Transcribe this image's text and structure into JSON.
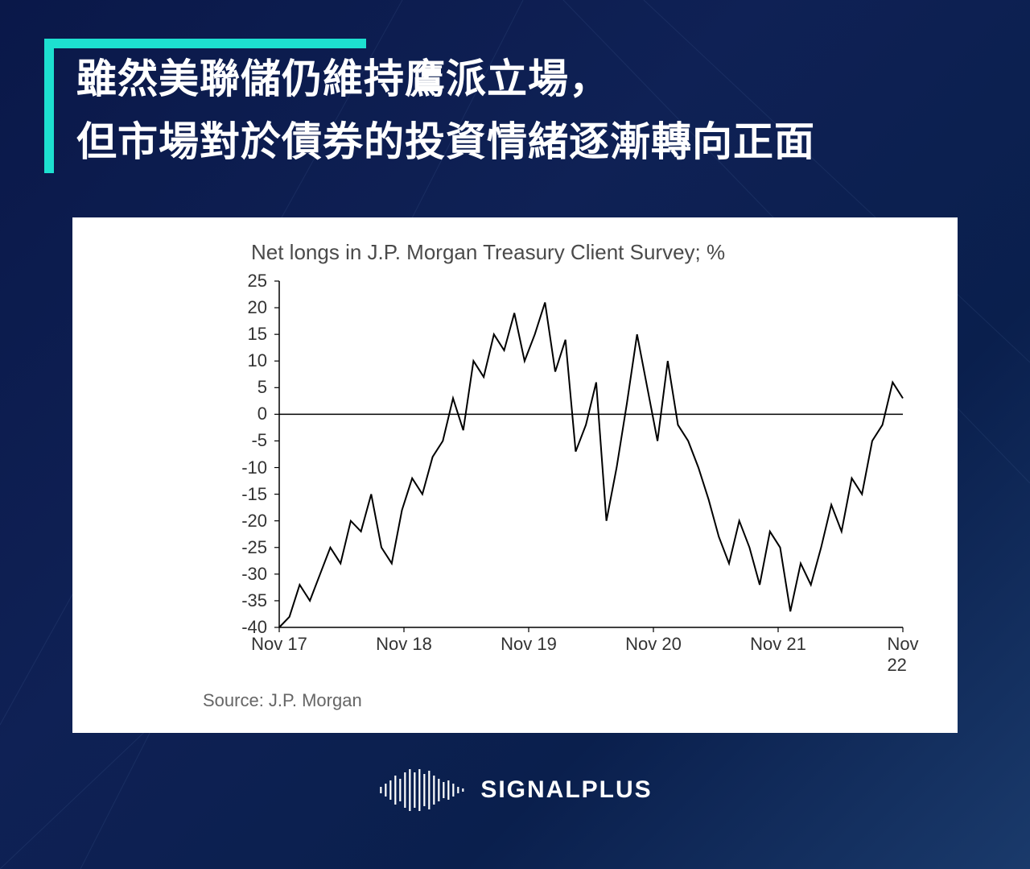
{
  "header": {
    "line1": "雖然美聯儲仍維持鷹派立場，",
    "line2": "但市場對於債券的投資情緒逐漸轉向正面",
    "accent_color": "#1de0d0",
    "text_color": "#ffffff",
    "title_fontsize": 50
  },
  "chart": {
    "type": "line",
    "title": "Net longs in J.P. Morgan Treasury Client Survey; %",
    "title_fontsize": 26,
    "title_color": "#4a4a4a",
    "source": "Source: J.P. Morgan",
    "source_fontsize": 22,
    "source_color": "#666666",
    "background_color": "#ffffff",
    "line_color": "#000000",
    "line_width": 2,
    "axis_color": "#000000",
    "ylim": [
      -40,
      25
    ],
    "ytick_step": 5,
    "yticks": [
      25,
      20,
      15,
      10,
      5,
      0,
      -5,
      -10,
      -15,
      -20,
      -25,
      -30,
      -35,
      -40
    ],
    "xlim": [
      0,
      60
    ],
    "xticks": [
      {
        "pos": 0,
        "label": "Nov 17"
      },
      {
        "pos": 12,
        "label": "Nov 18"
      },
      {
        "pos": 24,
        "label": "Nov 19"
      },
      {
        "pos": 36,
        "label": "Nov 20"
      },
      {
        "pos": 48,
        "label": "Nov 21"
      },
      {
        "pos": 60,
        "label": "Nov 22"
      }
    ],
    "series": [
      -40,
      -38,
      -32,
      -35,
      -30,
      -25,
      -28,
      -20,
      -22,
      -15,
      -25,
      -28,
      -18,
      -12,
      -15,
      -8,
      -5,
      3,
      -3,
      10,
      7,
      15,
      12,
      19,
      10,
      15,
      21,
      8,
      14,
      -7,
      -2,
      6,
      -20,
      -10,
      2,
      15,
      5,
      -5,
      10,
      -2,
      -5,
      -10,
      -16,
      -23,
      -28,
      -20,
      -25,
      -32,
      -22,
      -25,
      -37,
      -28,
      -32,
      -25,
      -17,
      -22,
      -12,
      -15,
      -5,
      -2,
      6,
      3
    ]
  },
  "logo": {
    "text": "SIGNALPLUS",
    "text_color": "#ffffff",
    "icon_color": "#ffffff"
  },
  "background": {
    "gradient_from": "#0a1849",
    "gradient_to": "#1a3a6b",
    "decor_line_color": "#3a5a8a"
  }
}
